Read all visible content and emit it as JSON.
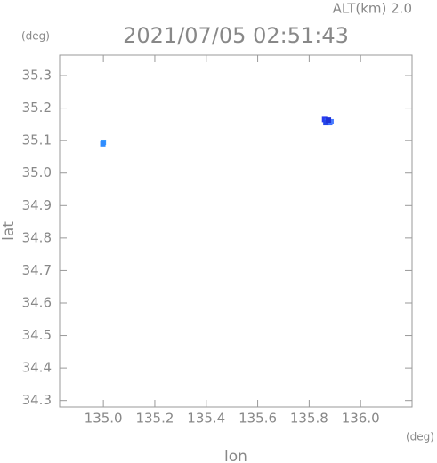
{
  "chart_data": {
    "type": "scatter",
    "title": "2021/07/05 02:51:43",
    "annotation": "ALT(km) 2.0",
    "y_unit": "(deg)",
    "x_unit": "(deg)",
    "x_label": "lon",
    "y_label": "lat",
    "x": [
      135.0,
      134.998,
      135.86,
      135.87,
      135.88,
      135.865,
      135.885,
      135.875
    ],
    "values": [
      35.095,
      35.09,
      35.165,
      35.16,
      35.155,
      35.155,
      35.158,
      35.163
    ],
    "colors": [
      "#3aa0ff",
      "#2f8cff",
      "#2a3cf0",
      "#2f5bff",
      "#3b6cff",
      "#2346e8",
      "#4a7cff",
      "#1f32d8"
    ],
    "xlim": [
      134.83,
      136.2
    ],
    "ylim": [
      34.28,
      35.363
    ],
    "xticks": [
      {
        "value": 135.0,
        "label": "135.0"
      },
      135.2,
      135.4,
      135.6,
      135.8,
      {
        "value": 136.0,
        "label": "136.0"
      }
    ],
    "yticks": [
      34.3,
      34.4,
      34.5,
      34.6,
      34.7,
      34.8,
      34.9,
      {
        "value": 35.0,
        "label": "35.0"
      },
      35.1,
      35.2,
      35.3
    ]
  }
}
